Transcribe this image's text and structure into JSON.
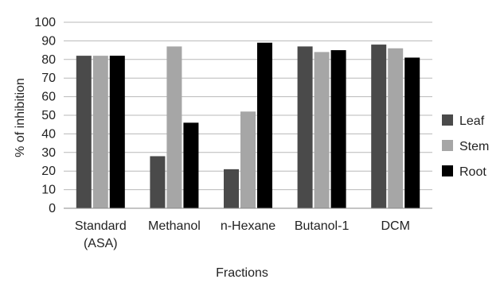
{
  "chart_data": {
    "type": "bar",
    "categories": [
      [
        "Standard",
        "(ASA)"
      ],
      [
        "Methanol"
      ],
      [
        "n-Hexane"
      ],
      [
        "Butanol-1"
      ],
      [
        "DCM"
      ]
    ],
    "series": [
      {
        "name": "Leaf",
        "color": "#4a4a4a",
        "values": [
          82,
          28,
          21,
          87,
          88
        ]
      },
      {
        "name": "Stem",
        "color": "#a6a6a6",
        "values": [
          82,
          87,
          52,
          84,
          86
        ]
      },
      {
        "name": "Root",
        "color": "#000000",
        "values": [
          82,
          46,
          89,
          85,
          81
        ]
      }
    ],
    "xlabel": "Fractions",
    "ylabel": "% of inhibition",
    "ylim": [
      0,
      100
    ],
    "yticks": [
      0,
      10,
      20,
      30,
      40,
      50,
      60,
      70,
      80,
      90,
      100
    ],
    "grid": true,
    "legend_position": "right"
  }
}
